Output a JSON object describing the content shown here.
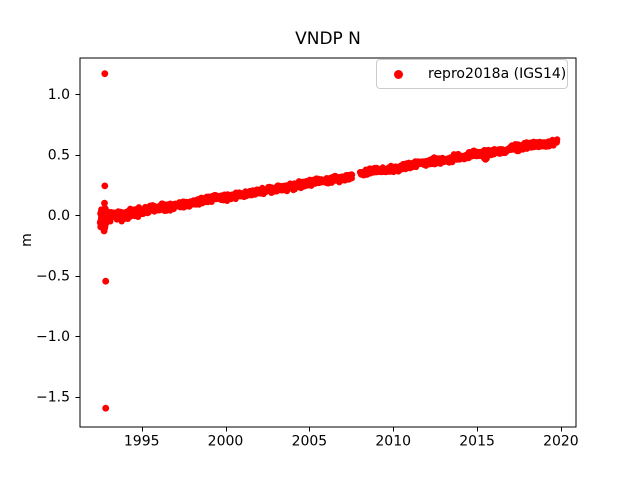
{
  "window": {
    "background": "#ffffff"
  },
  "chart_data": {
    "type": "scatter",
    "title": "VNDP N",
    "xlabel": "",
    "ylabel": "m",
    "xlim": [
      1991.32,
      2020.9
    ],
    "ylim": [
      -1.75,
      1.3
    ],
    "xticks": [
      1995,
      2000,
      2005,
      2010,
      2015,
      2020
    ],
    "xtick_labels": [
      "1995",
      "2000",
      "2005",
      "2010",
      "2015",
      "2020"
    ],
    "yticks": [
      1.0,
      0.5,
      0.0,
      -0.5,
      -1.0,
      -1.5
    ],
    "ytick_labels": [
      "1.0",
      "0.5",
      "0.0",
      "−0.5",
      "−1.0",
      "−1.5"
    ],
    "grid": false,
    "axis_color": "#000000",
    "legend": {
      "position": "upper-right",
      "entries": [
        {
          "label": "repro2018a (IGS14)",
          "marker": "dot",
          "color": "#ff0000"
        }
      ]
    },
    "series": [
      {
        "name": "repro2018a (IGS14)",
        "color": "#ff0000",
        "marker": "point",
        "trend_segments": [
          {
            "x_start": 1992.75,
            "y_start": -0.02,
            "x_end": 2007.55,
            "y_end": 0.325
          },
          {
            "x_start": 2008.02,
            "y_start": 0.343,
            "x_end": 2019.78,
            "y_end": 0.612
          }
        ],
        "gap": {
          "x_start": 2007.55,
          "x_end": 2008.02
        },
        "noise_sigma": 0.013,
        "start_cluster": {
          "x_center": 1992.7,
          "y_center": -0.025,
          "x_spread": 0.15,
          "y_spread": 0.08,
          "n_points": 60
        },
        "outliers": [
          {
            "x": 1992.8,
            "y": 1.17
          },
          {
            "x": 1992.8,
            "y": 0.243
          },
          {
            "x": 1992.78,
            "y": 0.1
          },
          {
            "x": 1992.76,
            "y": -0.13
          },
          {
            "x": 1992.85,
            "y": -0.545
          },
          {
            "x": 1992.85,
            "y": -1.595
          },
          {
            "x": 2015.44,
            "y": 0.472
          },
          {
            "x": 2015.5,
            "y": 0.463
          },
          {
            "x": 2015.56,
            "y": 0.47
          }
        ]
      }
    ]
  }
}
